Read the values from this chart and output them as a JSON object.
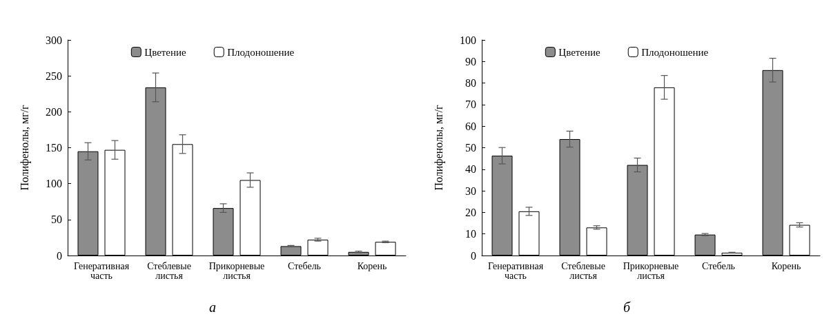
{
  "chart_data": [
    {
      "type": "bar",
      "subtitle": "а",
      "ylabel": "Полифенолы, мг/г",
      "categories": [
        "Генеративная\nчасть",
        "Стеблевые\nлистья",
        "Прикорневые\nлистья",
        "Стебель",
        "Корень"
      ],
      "series": [
        {
          "name": "Цветение",
          "color": "#8c8c8c",
          "values": [
            145,
            234,
            66,
            13,
            5
          ],
          "errors": [
            12,
            20,
            6,
            1,
            1
          ]
        },
        {
          "name": "Плодоношение",
          "color": "#ffffff",
          "values": [
            147,
            155,
            105,
            22,
            19
          ],
          "errors": [
            13,
            13,
            10,
            2,
            1
          ]
        }
      ],
      "ylim": [
        0,
        300
      ],
      "yticks": [
        0,
        50,
        100,
        150,
        200,
        250,
        300
      ],
      "grid": false,
      "legend": "top"
    },
    {
      "type": "bar",
      "subtitle": "б",
      "ylabel": "Полифенолы, мг/г",
      "categories": [
        "Генеративная\nчасть",
        "Стеблевые\nлистья",
        "Прикорневые\nлистья",
        "Стебель",
        "Корень"
      ],
      "series": [
        {
          "name": "Цветение",
          "color": "#8c8c8c",
          "values": [
            46.3,
            54,
            42,
            9.7,
            86
          ],
          "errors": [
            3.8,
            3.7,
            3.2,
            0.5,
            5.5
          ]
        },
        {
          "name": "Плодоношение",
          "color": "#ffffff",
          "values": [
            20.5,
            13,
            78,
            1.3,
            14.2
          ],
          "errors": [
            1.9,
            0.8,
            5.5,
            0.2,
            1
          ]
        }
      ],
      "ylim": [
        0,
        100
      ],
      "yticks": [
        0,
        10,
        20,
        30,
        40,
        50,
        60,
        70,
        80,
        90,
        100
      ],
      "grid": false,
      "legend": "top"
    }
  ]
}
